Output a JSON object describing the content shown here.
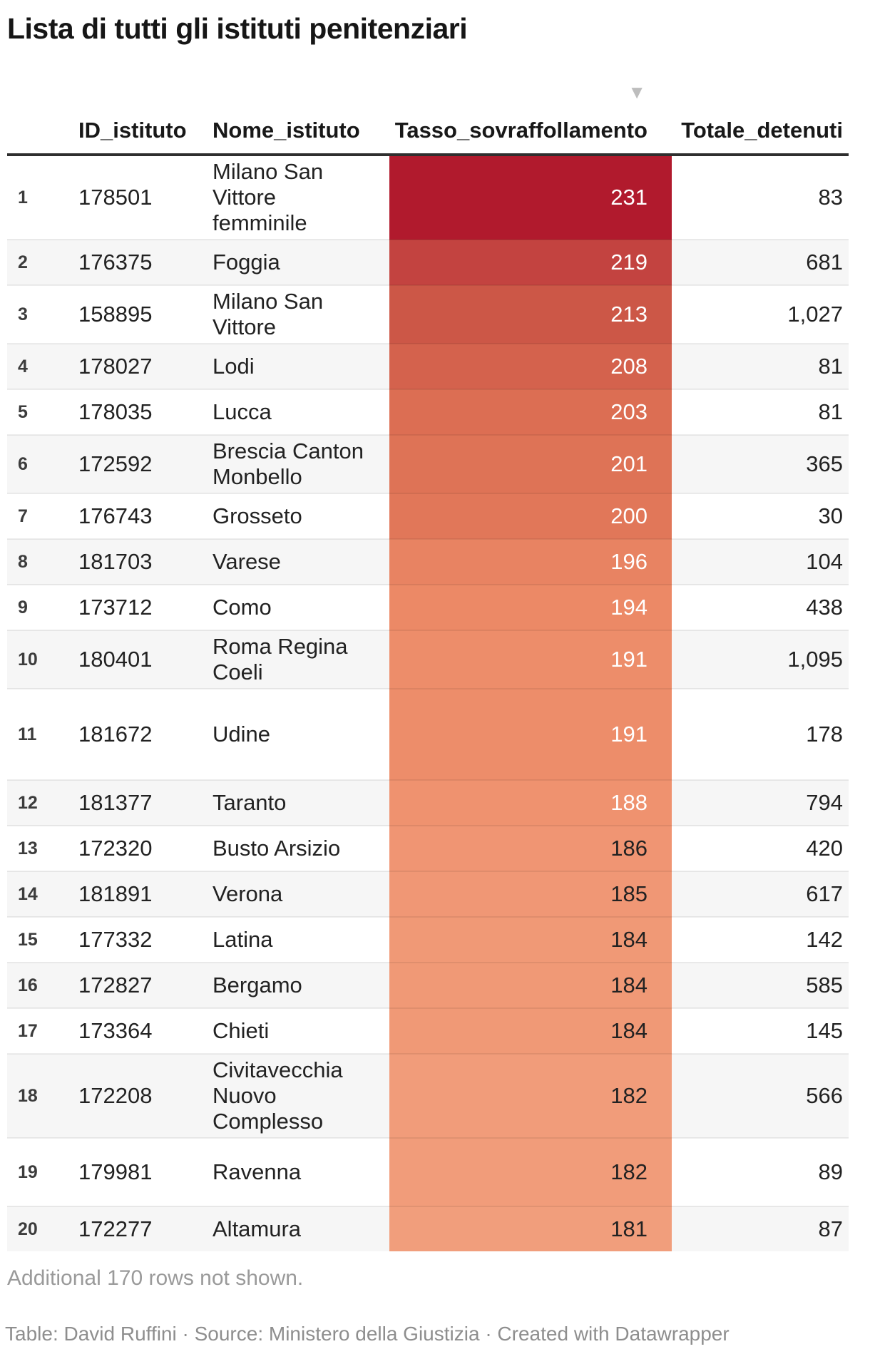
{
  "title": "Lista di tutti gli istituti penitenziari",
  "additional_note": "Additional 170 rows not shown.",
  "footer": "Table: David Ruffini · Source: Ministero della Giustizia · Created with Datawrapper",
  "sort_indicator": {
    "icon": "triangle-down-icon",
    "column": "Tasso_sovraffollamento",
    "direction": "descending",
    "glyph": "▼",
    "color": "#bdbdbd"
  },
  "colors": {
    "header_border": "#2e2e2e",
    "zebra_stripe": "#f6f6f6",
    "heat_max": "#B11A2D",
    "heat_min": "#F19E7C",
    "muted_text": "#9a9a9a"
  },
  "chart_data": {
    "type": "table",
    "title": "Lista di tutti gli istituti penitenziari",
    "columns": [
      "ID_istituto",
      "Nome_istituto",
      "Tasso_sovraffollamento",
      "Totale_detenuti"
    ],
    "sorted_by": "Tasso_sovraffollamento",
    "sort_direction": "descending",
    "heatmap_column": "Tasso_sovraffollamento",
    "rows": [
      {
        "n": "1",
        "id": "178501",
        "name": "Milano San Vittore femminile",
        "rate": "231",
        "total": "83",
        "color": "#B11A2D",
        "value_color": "#ffffff"
      },
      {
        "n": "2",
        "id": "176375",
        "name": "Foggia",
        "rate": "219",
        "total": "681",
        "color": "#C34340",
        "value_color": "#ffffff"
      },
      {
        "n": "3",
        "id": "158895",
        "name": "Milano San Vittore",
        "rate": "213",
        "total": "1,027",
        "color": "#CC5747",
        "value_color": "#ffffff"
      },
      {
        "n": "4",
        "id": "178027",
        "name": "Lodi",
        "rate": "208",
        "total": "81",
        "color": "#D4624D",
        "value_color": "#ffffff"
      },
      {
        "n": "5",
        "id": "178035",
        "name": "Lucca",
        "rate": "203",
        "total": "81",
        "color": "#DC6E53",
        "value_color": "#ffffff"
      },
      {
        "n": "6",
        "id": "172592",
        "name": "Brescia Canton Monbello",
        "rate": "201",
        "total": "365",
        "color": "#DE7356",
        "value_color": "#ffffff"
      },
      {
        "n": "7",
        "id": "176743",
        "name": "Grosseto",
        "rate": "200",
        "total": "30",
        "color": "#E17759",
        "value_color": "#ffffff"
      },
      {
        "n": "8",
        "id": "181703",
        "name": "Varese",
        "rate": "196",
        "total": "104",
        "color": "#E88362",
        "value_color": "#ffffff"
      },
      {
        "n": "9",
        "id": "173712",
        "name": "Como",
        "rate": "194",
        "total": "438",
        "color": "#EC8966",
        "value_color": "#ffffff"
      },
      {
        "n": "10",
        "id": "180401",
        "name": "Roma Regina Coeli",
        "rate": "191",
        "total": "1,095",
        "color": "#ED8D6A",
        "value_color": "#ffffff"
      },
      {
        "n": "11",
        "id": "181672",
        "name": "Udine",
        "rate": "191",
        "total": "178",
        "color": "#ED8D6A",
        "value_color": "#ffffff"
      },
      {
        "n": "12",
        "id": "181377",
        "name": "Taranto",
        "rate": "188",
        "total": "794",
        "color": "#EF926F",
        "value_color": "#ffffff"
      },
      {
        "n": "13",
        "id": "172320",
        "name": "Busto Arsizio",
        "rate": "186",
        "total": "420",
        "color": "#F09573",
        "value_color": "#222222"
      },
      {
        "n": "14",
        "id": "181891",
        "name": "Verona",
        "rate": "185",
        "total": "617",
        "color": "#F09775",
        "value_color": "#222222"
      },
      {
        "n": "15",
        "id": "177332",
        "name": "Latina",
        "rate": "184",
        "total": "142",
        "color": "#F09976",
        "value_color": "#222222"
      },
      {
        "n": "16",
        "id": "172827",
        "name": "Bergamo",
        "rate": "184",
        "total": "585",
        "color": "#F09976",
        "value_color": "#222222"
      },
      {
        "n": "17",
        "id": "173364",
        "name": "Chieti",
        "rate": "184",
        "total": "145",
        "color": "#F09976",
        "value_color": "#222222"
      },
      {
        "n": "18",
        "id": "172208",
        "name": "Civitavecchia Nuovo Complesso",
        "rate": "182",
        "total": "566",
        "color": "#F19C7A",
        "value_color": "#222222"
      },
      {
        "n": "19",
        "id": "179981",
        "name": "Ravenna",
        "rate": "182",
        "total": "89",
        "color": "#F19C7A",
        "value_color": "#222222"
      },
      {
        "n": "20",
        "id": "172277",
        "name": "Altamura",
        "rate": "181",
        "total": "87",
        "color": "#F19E7C",
        "value_color": "#222222"
      }
    ]
  }
}
